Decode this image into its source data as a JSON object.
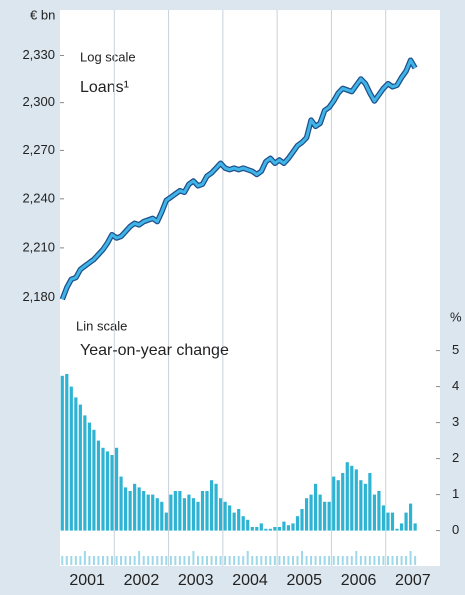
{
  "chart_data": [
    {
      "type": "line",
      "ylabel": "€ bn",
      "annotation": "Log scale",
      "log_scale": true,
      "ylim": [
        2172,
        2358
      ],
      "yticks": [
        {
          "value": 2180,
          "label": "2,180"
        },
        {
          "value": 2210,
          "label": "2,210"
        },
        {
          "value": 2240,
          "label": "2,240"
        },
        {
          "value": 2270,
          "label": "2,270"
        },
        {
          "value": 2300,
          "label": "2,300"
        },
        {
          "value": 2330,
          "label": "2,330"
        }
      ],
      "xlim": [
        2001,
        2008
      ],
      "xticks": [
        {
          "value": 2001.5,
          "label": "2001"
        },
        {
          "value": 2002.5,
          "label": "2002"
        },
        {
          "value": 2003.5,
          "label": "2003"
        },
        {
          "value": 2004.5,
          "label": "2004"
        },
        {
          "value": 2005.5,
          "label": "2005"
        },
        {
          "value": 2006.5,
          "label": "2006"
        },
        {
          "value": 2007.5,
          "label": "2007"
        }
      ],
      "x": [
        2001.042,
        2001.125,
        2001.208,
        2001.292,
        2001.375,
        2001.458,
        2001.542,
        2001.625,
        2001.708,
        2001.792,
        2001.875,
        2001.958,
        2002.042,
        2002.125,
        2002.208,
        2002.292,
        2002.375,
        2002.458,
        2002.542,
        2002.625,
        2002.708,
        2002.792,
        2002.875,
        2002.958,
        2003.042,
        2003.125,
        2003.208,
        2003.292,
        2003.375,
        2003.458,
        2003.542,
        2003.625,
        2003.708,
        2003.792,
        2003.875,
        2003.958,
        2004.042,
        2004.125,
        2004.208,
        2004.292,
        2004.375,
        2004.458,
        2004.542,
        2004.625,
        2004.708,
        2004.792,
        2004.875,
        2004.958,
        2005.042,
        2005.125,
        2005.208,
        2005.292,
        2005.375,
        2005.458,
        2005.542,
        2005.625,
        2005.708,
        2005.792,
        2005.875,
        2005.958,
        2006.042,
        2006.125,
        2006.208,
        2006.292,
        2006.375,
        2006.458,
        2006.542,
        2006.625,
        2006.708,
        2006.792,
        2006.875,
        2006.958,
        2007.042,
        2007.125,
        2007.208,
        2007.292,
        2007.375,
        2007.458,
        2007.542
      ],
      "series": [
        {
          "name": "Loans¹",
          "color": "#3fb4e6",
          "values": [
            2179,
            2186,
            2191,
            2192,
            2197,
            2199,
            2201,
            2203,
            2206,
            2209,
            2213,
            2218,
            2216,
            2217,
            2220,
            2223,
            2225,
            2224,
            2226,
            2227,
            2228,
            2226,
            2232,
            2239,
            2241,
            2243,
            2245,
            2244,
            2249,
            2251,
            2248,
            2249,
            2254,
            2256,
            2259,
            2262,
            2259,
            2258,
            2259,
            2258,
            2259,
            2258,
            2257,
            2255,
            2257,
            2263,
            2265,
            2262,
            2264,
            2262,
            2265,
            2269,
            2273,
            2275,
            2278,
            2289,
            2285,
            2287,
            2295,
            2297,
            2301,
            2306,
            2309,
            2308,
            2307,
            2311,
            2315,
            2312,
            2306,
            2301,
            2305,
            2309,
            2312,
            2310,
            2311,
            2316,
            2320,
            2327,
            2322
          ]
        }
      ]
    },
    {
      "type": "bar",
      "ylabel": "%",
      "annotation": "Lin scale",
      "ylim": [
        -0.4,
        6.1
      ],
      "yticks": [
        0,
        1,
        2,
        3,
        4,
        5
      ],
      "xlim": [
        2001,
        2008
      ],
      "x": [
        2001.042,
        2001.125,
        2001.208,
        2001.292,
        2001.375,
        2001.458,
        2001.542,
        2001.625,
        2001.708,
        2001.792,
        2001.875,
        2001.958,
        2002.042,
        2002.125,
        2002.208,
        2002.292,
        2002.375,
        2002.458,
        2002.542,
        2002.625,
        2002.708,
        2002.792,
        2002.875,
        2002.958,
        2003.042,
        2003.125,
        2003.208,
        2003.292,
        2003.375,
        2003.458,
        2003.542,
        2003.625,
        2003.708,
        2003.792,
        2003.875,
        2003.958,
        2004.042,
        2004.125,
        2004.208,
        2004.292,
        2004.375,
        2004.458,
        2004.542,
        2004.625,
        2004.708,
        2004.792,
        2004.875,
        2004.958,
        2005.042,
        2005.125,
        2005.208,
        2005.292,
        2005.375,
        2005.458,
        2005.542,
        2005.625,
        2005.708,
        2005.792,
        2005.875,
        2005.958,
        2006.042,
        2006.125,
        2006.208,
        2006.292,
        2006.375,
        2006.458,
        2006.542,
        2006.625,
        2006.708,
        2006.792,
        2006.875,
        2006.958,
        2007.042,
        2007.125,
        2007.208,
        2007.292,
        2007.375,
        2007.458,
        2007.542
      ],
      "series": [
        {
          "name": "Year-on-year change",
          "color": "#2fb3d3",
          "values": [
            4.3,
            4.35,
            4.0,
            3.7,
            3.5,
            3.2,
            3.0,
            2.8,
            2.5,
            2.3,
            2.2,
            2.1,
            2.3,
            1.5,
            1.2,
            1.1,
            1.3,
            1.2,
            1.1,
            1.0,
            1.0,
            0.9,
            0.8,
            0.5,
            1.0,
            1.1,
            1.1,
            0.9,
            1.0,
            0.9,
            0.8,
            1.1,
            1.1,
            1.4,
            1.3,
            0.9,
            0.8,
            0.7,
            0.5,
            0.6,
            0.4,
            0.3,
            0.1,
            0.1,
            0.2,
            0.05,
            0.05,
            0.1,
            0.1,
            0.25,
            0.15,
            0.2,
            0.4,
            0.6,
            0.9,
            1.0,
            1.3,
            1.0,
            0.8,
            0.8,
            1.5,
            1.4,
            1.6,
            1.9,
            1.8,
            1.7,
            1.4,
            1.3,
            1.6,
            1.0,
            1.1,
            0.7,
            0.5,
            0.5,
            0.05,
            0.2,
            0.5,
            0.75,
            0.2
          ]
        }
      ]
    }
  ]
}
